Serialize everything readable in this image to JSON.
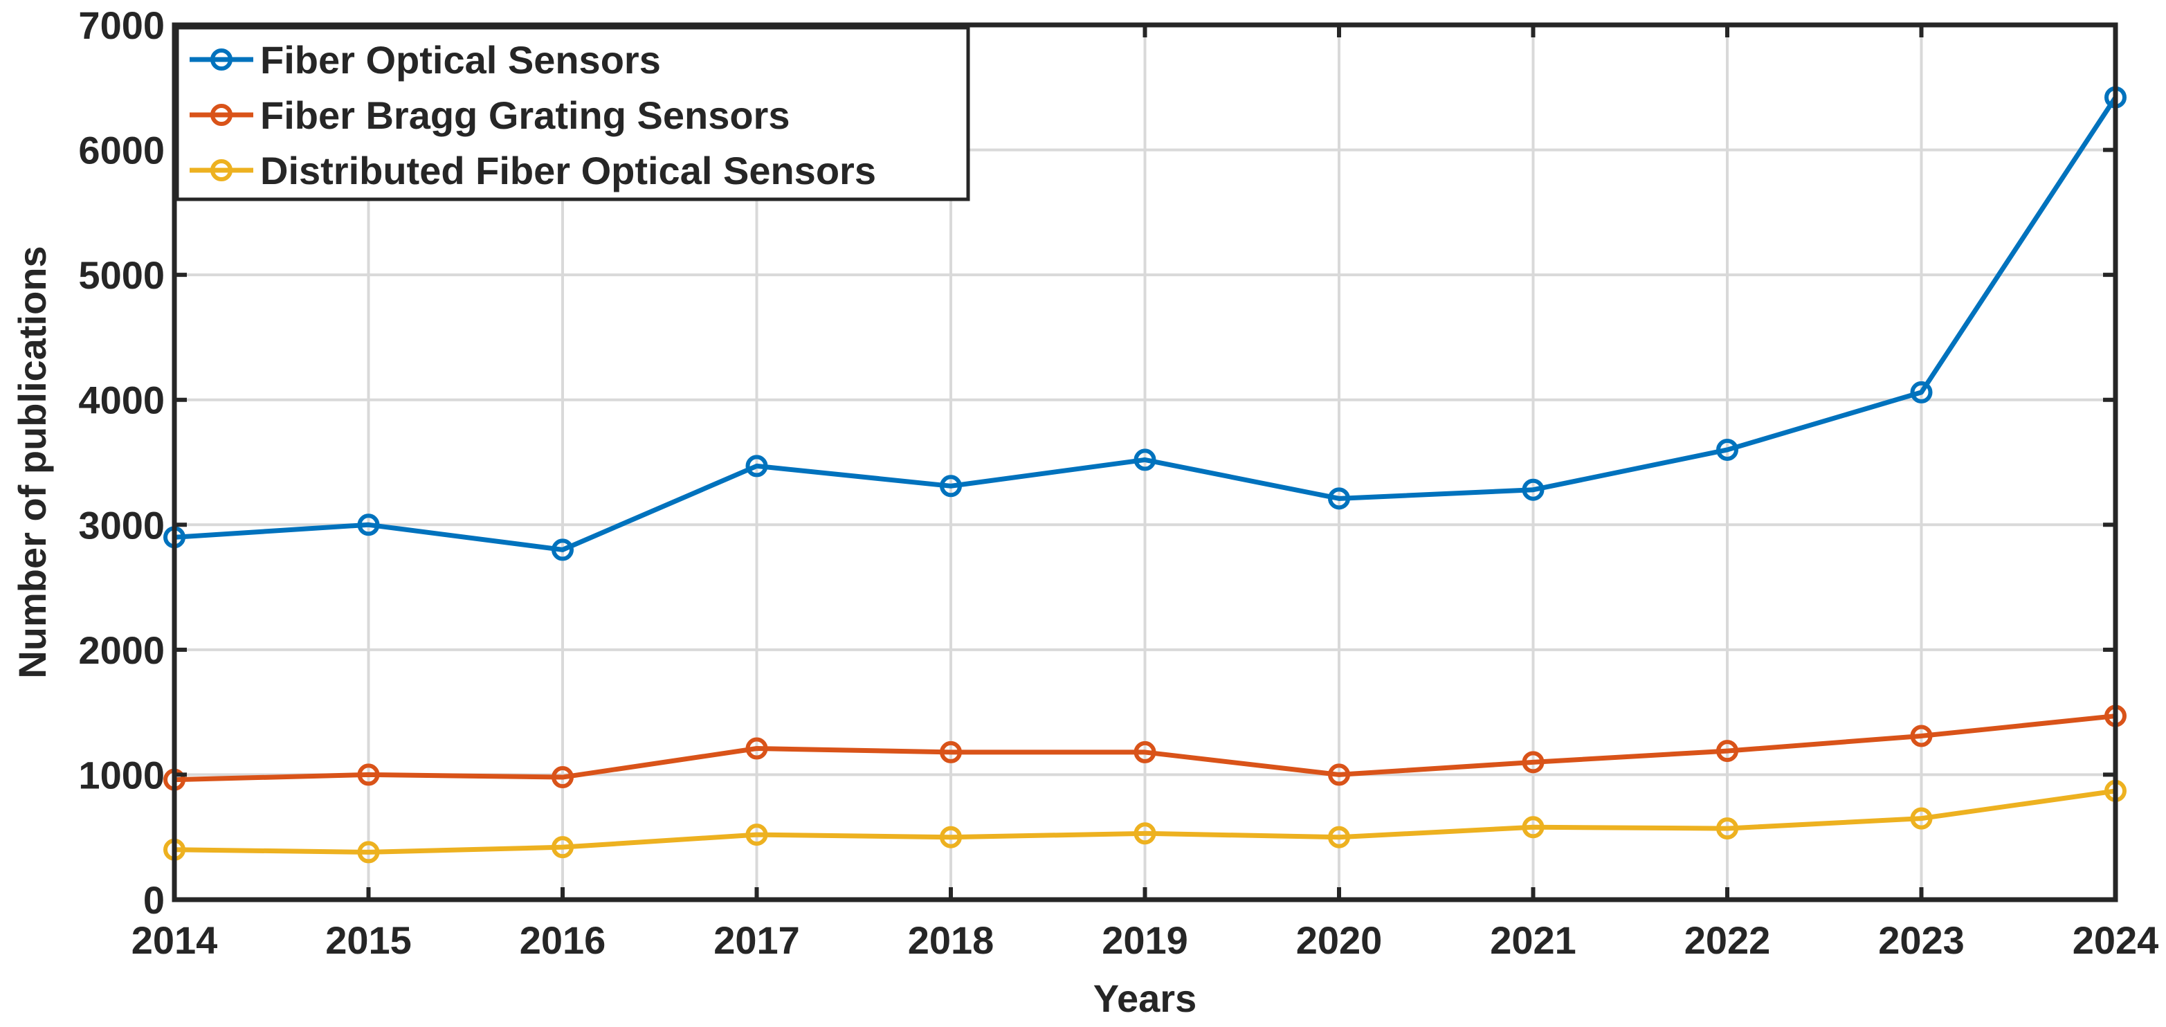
{
  "chart_data": {
    "type": "line",
    "title": "",
    "xlabel": "Years",
    "ylabel": "Number of publications",
    "x": [
      2014,
      2015,
      2016,
      2017,
      2018,
      2019,
      2020,
      2021,
      2022,
      2023,
      2024
    ],
    "xlim": [
      2014,
      2024
    ],
    "ylim": [
      0,
      7000
    ],
    "xticks": [
      "2014",
      "2015",
      "2016",
      "2017",
      "2018",
      "2019",
      "2020",
      "2021",
      "2022",
      "2023",
      "2024"
    ],
    "yticks": [
      "0",
      "1000",
      "2000",
      "3000",
      "4000",
      "5000",
      "6000",
      "7000"
    ],
    "grid": true,
    "legend_position": "top-left",
    "series": [
      {
        "name": "Fiber Optical Sensors",
        "color": "#0072BD",
        "marker": "circle",
        "values": [
          2900,
          3000,
          2800,
          3470,
          3310,
          3520,
          3210,
          3280,
          3600,
          4060,
          6420
        ]
      },
      {
        "name": "Fiber Bragg Grating Sensors",
        "color": "#D95319",
        "marker": "circle",
        "values": [
          960,
          1000,
          980,
          1210,
          1180,
          1180,
          1000,
          1100,
          1190,
          1310,
          1470
        ]
      },
      {
        "name": "Distributed Fiber Optical Sensors",
        "color": "#EDB120",
        "marker": "circle",
        "values": [
          400,
          380,
          420,
          520,
          500,
          530,
          500,
          580,
          570,
          650,
          870
        ]
      }
    ]
  }
}
